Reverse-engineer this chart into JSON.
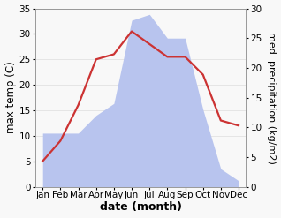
{
  "months": [
    "Jan",
    "Feb",
    "Mar",
    "Apr",
    "May",
    "Jun",
    "Jul",
    "Aug",
    "Sep",
    "Oct",
    "Nov",
    "Dec"
  ],
  "month_indices": [
    0,
    1,
    2,
    3,
    4,
    5,
    6,
    7,
    8,
    9,
    10,
    11
  ],
  "temperature": [
    5.0,
    9.0,
    16.0,
    25.0,
    26.0,
    30.5,
    28.0,
    25.5,
    25.5,
    22.0,
    13.0,
    12.0
  ],
  "precipitation": [
    9.0,
    9.0,
    9.0,
    12.0,
    14.0,
    28.0,
    29.0,
    25.0,
    25.0,
    13.0,
    3.0,
    1.0
  ],
  "temp_color": "#cc3333",
  "precip_color": "#b8c4ee",
  "left_ylim": [
    0,
    35
  ],
  "right_ylim": [
    0,
    30
  ],
  "left_yticks": [
    0,
    5,
    10,
    15,
    20,
    25,
    30,
    35
  ],
  "right_yticks": [
    0,
    5,
    10,
    15,
    20,
    25,
    30
  ],
  "ylabel_left": "max temp (C)",
  "ylabel_right": "med. precipitation (kg/m2)",
  "xlabel": "date (month)",
  "plot_bg_color": "#f8f8f8",
  "label_fontsize": 8.5,
  "tick_fontsize": 7.5,
  "xlabel_fontsize": 9
}
